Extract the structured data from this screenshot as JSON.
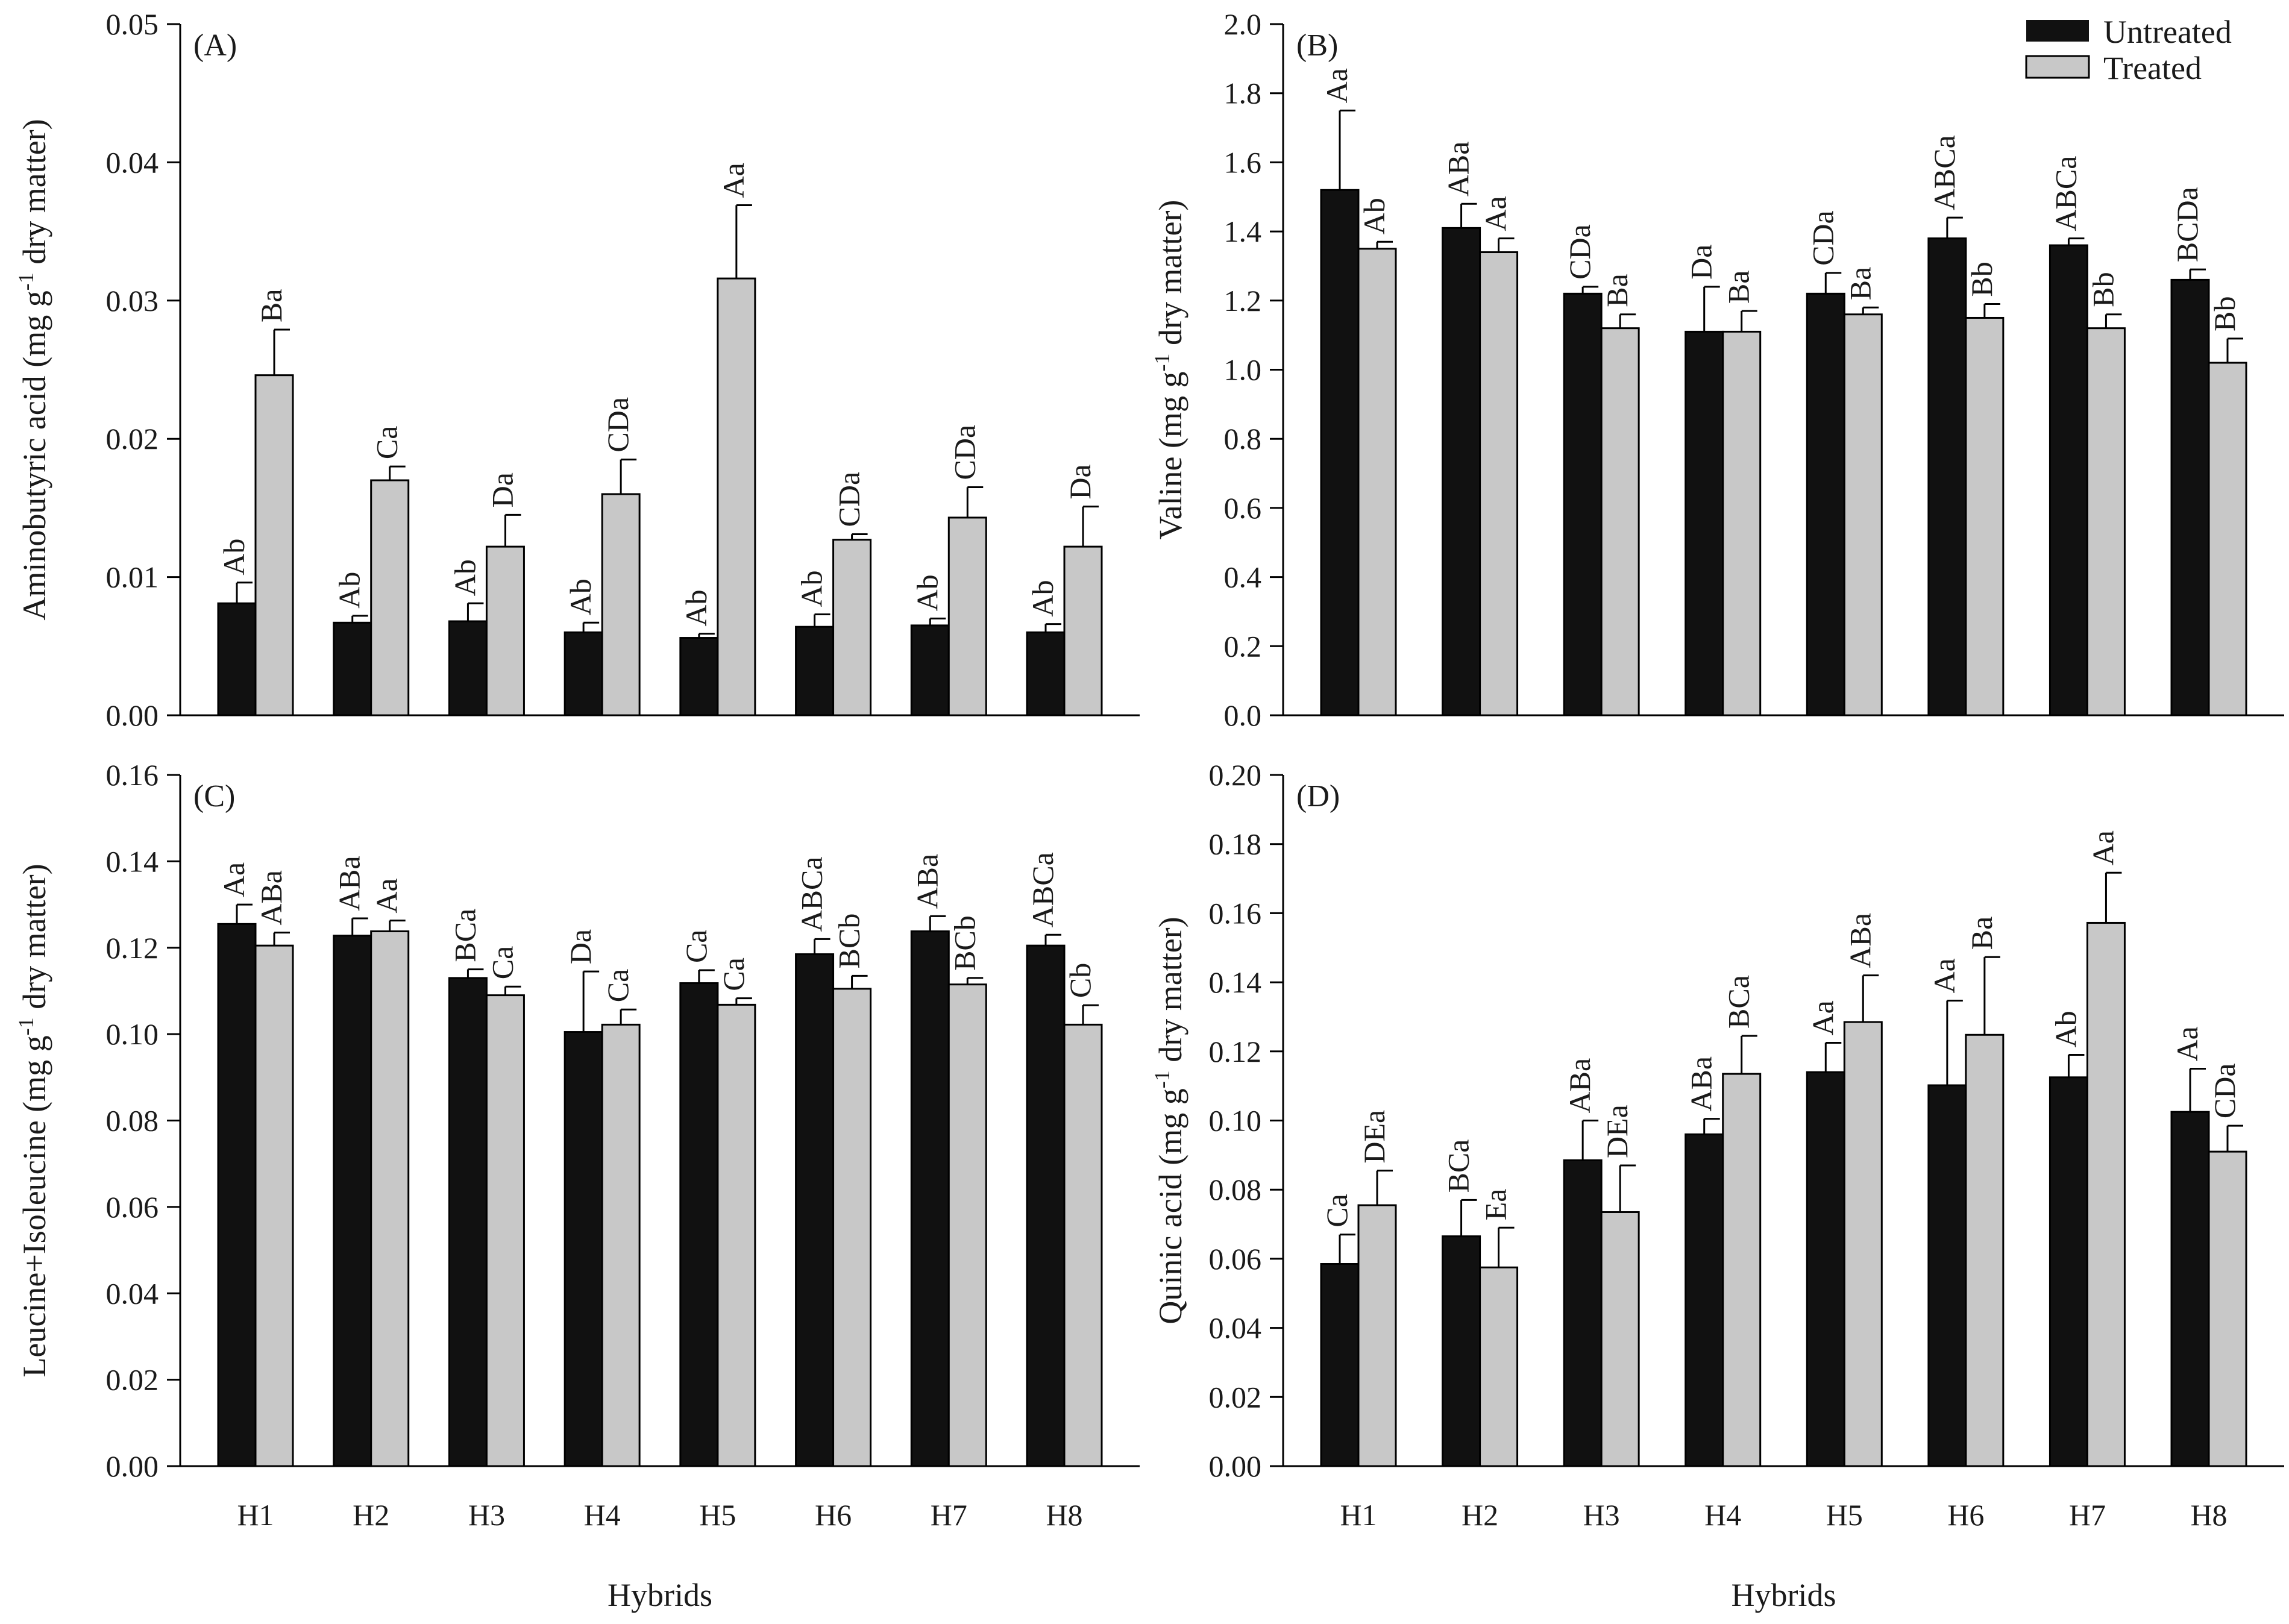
{
  "chart_data": [
    {
      "type": "bar",
      "panel_label": "(A)",
      "ylabel": "Aminobutyric acid (mg g-1 dry matter)",
      "ylabel_parts": {
        "pre": "Aminobutyric acid (mg g",
        "sup": "-1",
        "post": " dry matter)"
      },
      "xlabel": "Hybrids",
      "categories": [
        "H1",
        "H2",
        "H3",
        "H4",
        "H5",
        "H6",
        "H7",
        "H8"
      ],
      "ylim": [
        0,
        0.05
      ],
      "yticks": [
        "0.00",
        "0.01",
        "0.02",
        "0.03",
        "0.04",
        "0.05"
      ],
      "show_x_tick_labels": false,
      "show_xlabel": false,
      "series": [
        {
          "name": "Untreated",
          "values": [
            0.0081,
            0.0067,
            0.0068,
            0.006,
            0.0056,
            0.0064,
            0.0065,
            0.006
          ],
          "errors": [
            0.0015,
            0.0005,
            0.0013,
            0.0007,
            0.0003,
            0.0009,
            0.0005,
            0.0006
          ],
          "labels": [
            "Ab",
            "Ab",
            "Ab",
            "Ab",
            "Ab",
            "Ab",
            "Ab",
            "Ab"
          ]
        },
        {
          "name": "Treated",
          "values": [
            0.0246,
            0.017,
            0.0122,
            0.016,
            0.0316,
            0.0127,
            0.0143,
            0.0122
          ],
          "errors": [
            0.0033,
            0.001,
            0.0023,
            0.0025,
            0.0053,
            0.0004,
            0.0022,
            0.0029
          ],
          "labels": [
            "Ba",
            "Ca",
            "Da",
            "CDa",
            "Aa",
            "CDa",
            "CDa",
            "Da"
          ]
        }
      ]
    },
    {
      "type": "bar",
      "panel_label": "(B)",
      "ylabel": "Valine (mg g-1 dry matter)",
      "ylabel_parts": {
        "pre": "Valine (mg g",
        "sup": "-1",
        "post": " dry matter)"
      },
      "xlabel": "Hybrids",
      "categories": [
        "H1",
        "H2",
        "H3",
        "H4",
        "H5",
        "H6",
        "H7",
        "H8"
      ],
      "ylim": [
        0,
        2.0
      ],
      "yticks": [
        "0.0",
        "0.2",
        "0.4",
        "0.6",
        "0.8",
        "1.0",
        "1.2",
        "1.4",
        "1.6",
        "1.8",
        "2.0"
      ],
      "show_x_tick_labels": false,
      "show_xlabel": false,
      "legend": {
        "position": "top-right",
        "entries": [
          "Untreated",
          "Treated"
        ]
      },
      "series": [
        {
          "name": "Untreated",
          "values": [
            1.52,
            1.41,
            1.22,
            1.11,
            1.22,
            1.38,
            1.36,
            1.26
          ],
          "errors": [
            0.23,
            0.07,
            0.02,
            0.13,
            0.06,
            0.06,
            0.02,
            0.03
          ],
          "labels": [
            "Aa",
            "ABa",
            "CDa",
            "Da",
            "CDa",
            "ABCa",
            "ABCa",
            "BCDa"
          ]
        },
        {
          "name": "Treated",
          "values": [
            1.35,
            1.34,
            1.12,
            1.11,
            1.16,
            1.15,
            1.12,
            1.02
          ],
          "errors": [
            0.02,
            0.04,
            0.04,
            0.06,
            0.02,
            0.04,
            0.04,
            0.07
          ],
          "labels": [
            "Ab",
            "Aa",
            "Ba",
            "Ba",
            "Ba",
            "Bb",
            "Bb",
            "Bb"
          ]
        }
      ]
    },
    {
      "type": "bar",
      "panel_label": "(C)",
      "ylabel": "Leucine+Isoleucine (mg g-1 dry matter)",
      "ylabel_parts": {
        "pre": "Leucine+Isoleucine (mg g",
        "sup": "-1",
        "post": " dry matter)"
      },
      "xlabel": "Hybrids",
      "categories": [
        "H1",
        "H2",
        "H3",
        "H4",
        "H5",
        "H6",
        "H7",
        "H8"
      ],
      "ylim": [
        0,
        0.16
      ],
      "yticks": [
        "0.00",
        "0.02",
        "0.04",
        "0.06",
        "0.08",
        "0.10",
        "0.12",
        "0.14",
        "0.16"
      ],
      "show_x_tick_labels": true,
      "show_xlabel": true,
      "series": [
        {
          "name": "Untreated",
          "values": [
            0.1255,
            0.1228,
            0.113,
            0.1005,
            0.1118,
            0.1185,
            0.1238,
            0.1205
          ],
          "errors": [
            0.0045,
            0.004,
            0.002,
            0.014,
            0.003,
            0.0035,
            0.0035,
            0.0025
          ],
          "labels": [
            "Aa",
            "ABa",
            "BCa",
            "Da",
            "Ca",
            "ABCa",
            "ABa",
            "ABCa"
          ]
        },
        {
          "name": "Treated",
          "values": [
            0.1205,
            0.1238,
            0.109,
            0.1022,
            0.1068,
            0.1105,
            0.1115,
            0.1022
          ],
          "errors": [
            0.003,
            0.0025,
            0.002,
            0.0035,
            0.0015,
            0.003,
            0.0015,
            0.0045
          ],
          "labels": [
            "ABa",
            "Aa",
            "Ca",
            "Ca",
            "Ca",
            "BCb",
            "BCb",
            "Cb"
          ]
        }
      ]
    },
    {
      "type": "bar",
      "panel_label": "(D)",
      "ylabel": "Quinic acid (mg g-1 dry matter)",
      "ylabel_parts": {
        "pre": "Quinic acid (mg g",
        "sup": "-1",
        "post": " dry matter)"
      },
      "xlabel": "Hybrids",
      "categories": [
        "H1",
        "H2",
        "H3",
        "H4",
        "H5",
        "H6",
        "H7",
        "H8"
      ],
      "ylim": [
        0,
        0.2
      ],
      "yticks": [
        "0.00",
        "0.02",
        "0.04",
        "0.06",
        "0.08",
        "0.10",
        "0.12",
        "0.14",
        "0.16",
        "0.18",
        "0.20"
      ],
      "show_x_tick_labels": true,
      "show_xlabel": true,
      "series": [
        {
          "name": "Untreated",
          "values": [
            0.0585,
            0.0665,
            0.0885,
            0.096,
            0.114,
            0.1102,
            0.1125,
            0.1025
          ],
          "errors": [
            0.0085,
            0.0105,
            0.0115,
            0.0045,
            0.0085,
            0.0245,
            0.0065,
            0.0125
          ],
          "labels": [
            "Ca",
            "BCa",
            "ABa",
            "ABa",
            "Aa",
            "Aa",
            "Ab",
            "Aa"
          ]
        },
        {
          "name": "Treated",
          "values": [
            0.0755,
            0.0575,
            0.0735,
            0.1135,
            0.1285,
            0.1248,
            0.1572,
            0.091
          ],
          "errors": [
            0.01,
            0.0115,
            0.0135,
            0.011,
            0.0135,
            0.0225,
            0.0145,
            0.0075
          ],
          "labels": [
            "DEa",
            "Ea",
            "DEa",
            "BCa",
            "ABa",
            "Ba",
            "Aa",
            "CDa"
          ]
        }
      ]
    }
  ],
  "colors": {
    "untreated": "#111111",
    "treated": "#c8c8c8",
    "axis": "#000000",
    "text": "#1a1a1a"
  }
}
